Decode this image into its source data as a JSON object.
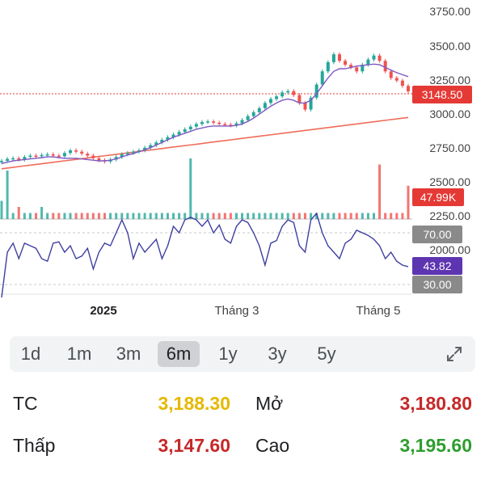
{
  "y_axis": {
    "price_ticks": [
      "3750.00",
      "3500.00",
      "3250.00",
      "3000.00",
      "2750.00",
      "2500.00",
      "2250.00",
      "2000.00"
    ]
  },
  "badges": {
    "last_price": "3148.50",
    "volume": "47.99K",
    "rsi_upper": "70.00",
    "rsi_value": "43.82",
    "rsi_lower": "30.00"
  },
  "x_axis": {
    "labels": [
      "2025",
      "Tháng 3",
      "Tháng 5"
    ]
  },
  "periods": [
    {
      "label": "1d",
      "active": false
    },
    {
      "label": "1m",
      "active": false
    },
    {
      "label": "3m",
      "active": false
    },
    {
      "label": "6m",
      "active": true
    },
    {
      "label": "1y",
      "active": false
    },
    {
      "label": "3y",
      "active": false
    },
    {
      "label": "5y",
      "active": false
    }
  ],
  "stats": {
    "tc_label": "TC",
    "tc_value": "3,188.30",
    "mo_label": "Mở",
    "mo_value": "3,180.80",
    "thap_label": "Thấp",
    "thap_value": "3,147.60",
    "cao_label": "Cao",
    "cao_value": "3,195.60"
  },
  "colors": {
    "up": "#26a69a",
    "down": "#ef5350",
    "ma_short": "#7e57c2",
    "ma_long": "#ef6c5a",
    "rsi_line": "#3f3fa0",
    "reference": "#e6b800",
    "red_value": "#c62828",
    "green_value": "#2e9e2e"
  },
  "chart_data": {
    "type": "candlestick",
    "price_axis_range": [
      2000,
      3750
    ],
    "rsi_bands": [
      30,
      70
    ],
    "last_close": 3148.5,
    "last_volume": "47.99K",
    "last_rsi": 43.82,
    "close_series": [
      2620,
      2635,
      2640,
      2630,
      2650,
      2660,
      2655,
      2665,
      2670,
      2660,
      2655,
      2680,
      2700,
      2690,
      2675,
      2660,
      2640,
      2625,
      2615,
      2630,
      2650,
      2670,
      2680,
      2690,
      2700,
      2720,
      2740,
      2760,
      2780,
      2800,
      2820,
      2840,
      2860,
      2880,
      2900,
      2915,
      2920,
      2910,
      2900,
      2895,
      2890,
      2905,
      2930,
      2960,
      2990,
      3020,
      3060,
      3090,
      3110,
      3140,
      3150,
      3120,
      3060,
      3010,
      3100,
      3200,
      3300,
      3370,
      3430,
      3380,
      3350,
      3330,
      3300,
      3350,
      3390,
      3420,
      3380,
      3300,
      3250,
      3230,
      3190,
      3148.5
    ],
    "ma_short_series": [
      2600,
      2610,
      2620,
      2625,
      2630,
      2635,
      2640,
      2645,
      2650,
      2650,
      2645,
      2640,
      2640,
      2640,
      2635,
      2630,
      2625,
      2620,
      2620,
      2625,
      2635,
      2650,
      2665,
      2675,
      2690,
      2705,
      2720,
      2740,
      2760,
      2780,
      2800,
      2815,
      2830,
      2845,
      2860,
      2870,
      2880,
      2885,
      2885,
      2885,
      2885,
      2890,
      2900,
      2920,
      2945,
      2975,
      3005,
      3035,
      3060,
      3080,
      3090,
      3080,
      3060,
      3060,
      3080,
      3130,
      3190,
      3250,
      3300,
      3320,
      3320,
      3330,
      3340,
      3345,
      3350,
      3355,
      3350,
      3330,
      3310,
      3290,
      3275,
      3260
    ],
    "ma_long_series": [
      2560,
      2570,
      2580,
      2590,
      2600,
      2610,
      2620,
      2630,
      2640,
      2650,
      2660,
      2670,
      2680,
      2690,
      2700,
      2710,
      2720,
      2730,
      2740,
      2750,
      2760,
      2770,
      2780,
      2790,
      2800,
      2810,
      2820,
      2830,
      2840,
      2850,
      2860,
      2870,
      2880,
      2890,
      2900,
      2910,
      2920,
      2930,
      2940,
      2950
    ],
    "volume_series": [
      0.3,
      0.8,
      0.1,
      0.2,
      0.1,
      0.1,
      0.1,
      0.2,
      0.1,
      0.1,
      0.1,
      0.1,
      0.1,
      0.1,
      0.1,
      0.1,
      0.1,
      0.1,
      0.1,
      0.1,
      0.1,
      0.1,
      0.1,
      0.1,
      0.1,
      0.1,
      0.1,
      0.1,
      0.1,
      0.1,
      0.1,
      0.1,
      0.1,
      1.0,
      0.1,
      0.1,
      0.1,
      0.1,
      0.1,
      0.1,
      0.1,
      0.1,
      0.1,
      0.1,
      0.1,
      0.1,
      0.1,
      0.1,
      0.1,
      0.1,
      0.1,
      0.1,
      0.1,
      0.1,
      0.1,
      0.1,
      0.1,
      0.1,
      0.1,
      0.1,
      0.1,
      0.1,
      0.1,
      0.1,
      0.1,
      0.1,
      0.9,
      0.1,
      0.1,
      0.1,
      0.1,
      0.55
    ],
    "rsi_series": [
      20,
      55,
      62,
      50,
      62,
      60,
      58,
      50,
      48,
      62,
      63,
      55,
      60,
      50,
      52,
      58,
      42,
      55,
      62,
      60,
      70,
      80,
      70,
      50,
      62,
      55,
      60,
      65,
      50,
      60,
      75,
      70,
      80,
      82,
      80,
      75,
      80,
      70,
      76,
      65,
      62,
      75,
      80,
      78,
      70,
      60,
      45,
      62,
      64,
      75,
      80,
      78,
      60,
      55,
      80,
      85,
      70,
      60,
      55,
      50,
      62,
      65,
      72,
      70,
      68,
      65,
      60,
      50,
      55,
      48,
      45,
      43.82
    ]
  }
}
